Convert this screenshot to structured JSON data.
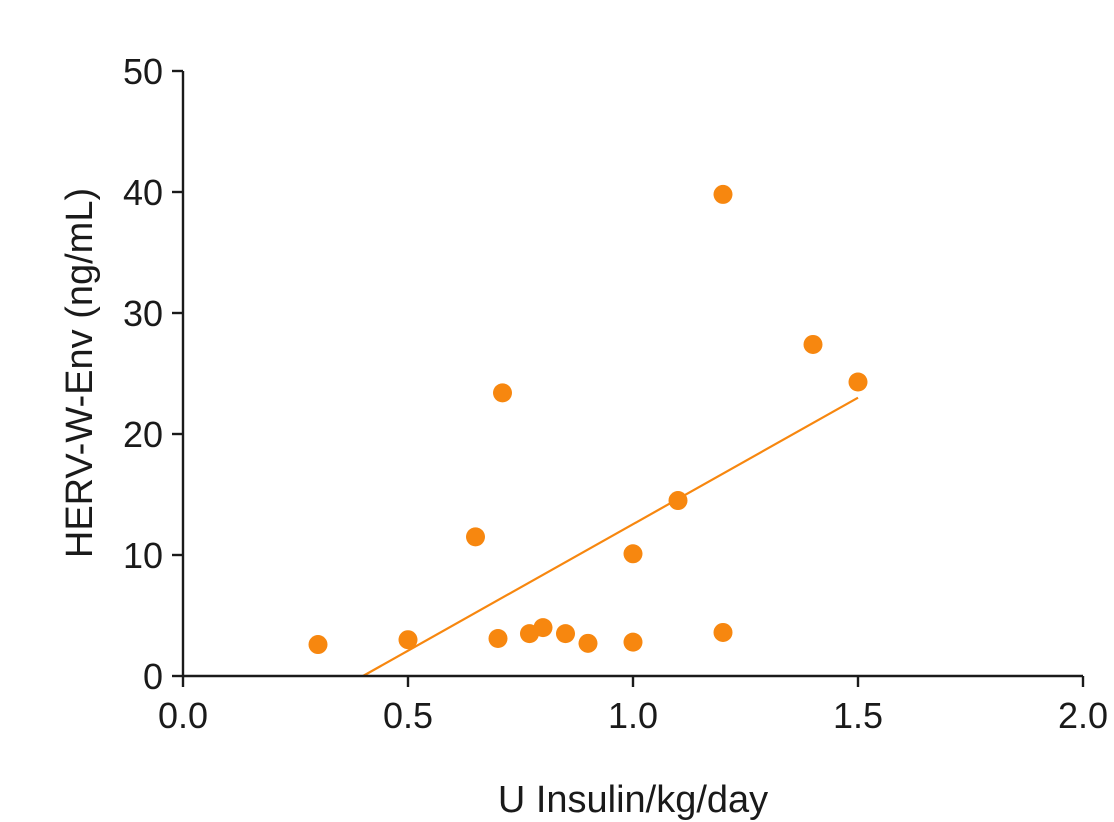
{
  "chart_data": {
    "type": "scatter",
    "title": "",
    "xlabel": "U Insulin/kg/day",
    "ylabel": "HERV-W-Env (ng/mL)",
    "xlim": [
      0,
      2
    ],
    "ylim": [
      0,
      50
    ],
    "x_ticks": [
      "0.0",
      "0.5",
      "1.0",
      "1.5",
      "2.0"
    ],
    "y_ticks": [
      "0",
      "10",
      "20",
      "30",
      "40",
      "50"
    ],
    "grid": false,
    "color": "#f7870f",
    "series": [
      {
        "points": [
          {
            "x": 0.3,
            "y": 2.6
          },
          {
            "x": 0.5,
            "y": 3.0
          },
          {
            "x": 0.65,
            "y": 11.5
          },
          {
            "x": 0.7,
            "y": 3.1
          },
          {
            "x": 0.71,
            "y": 23.4
          },
          {
            "x": 0.77,
            "y": 3.5
          },
          {
            "x": 0.8,
            "y": 4.0
          },
          {
            "x": 0.85,
            "y": 3.5
          },
          {
            "x": 0.9,
            "y": 2.7
          },
          {
            "x": 1.0,
            "y": 2.8
          },
          {
            "x": 1.0,
            "y": 10.1
          },
          {
            "x": 1.1,
            "y": 14.5
          },
          {
            "x": 1.2,
            "y": 3.6
          },
          {
            "x": 1.2,
            "y": 39.8
          },
          {
            "x": 1.4,
            "y": 27.4
          },
          {
            "x": 1.5,
            "y": 24.3
          }
        ]
      }
    ],
    "trendline": {
      "x": [
        0.4,
        1.5
      ],
      "y": [
        0.0,
        23.0
      ]
    }
  }
}
